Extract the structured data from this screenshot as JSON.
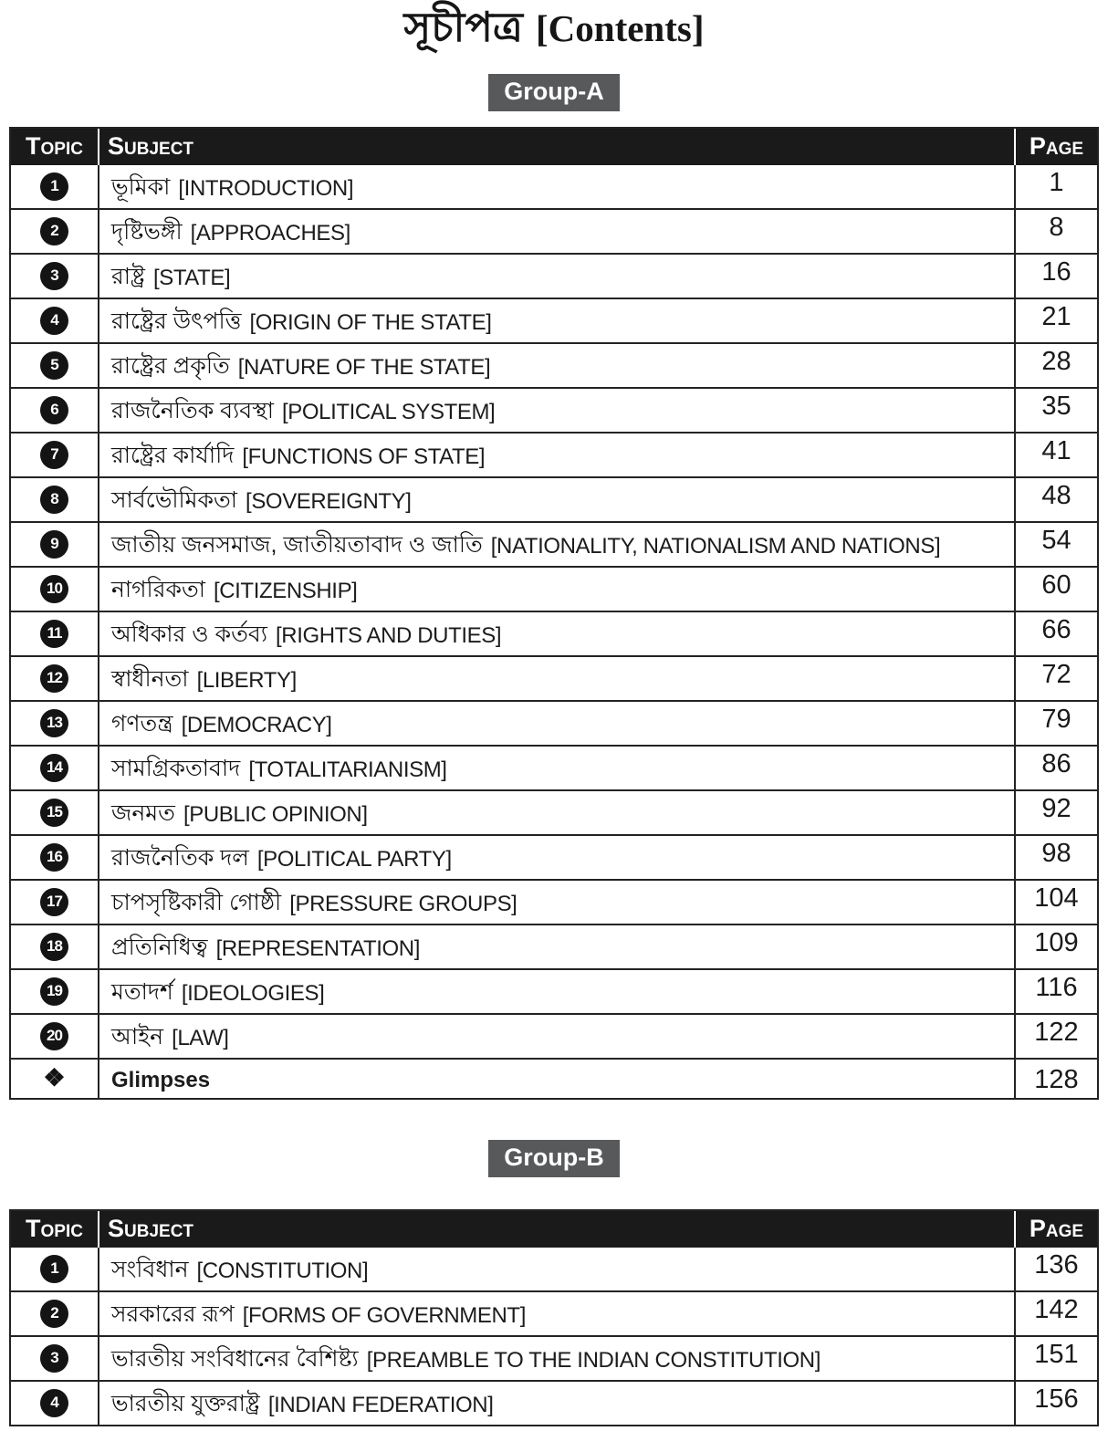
{
  "title": {
    "bn": "সূচীপত্র",
    "en": "[Contents]"
  },
  "columns": {
    "topic": "Topic",
    "subject": "Subject",
    "page": "Page"
  },
  "colors": {
    "header_bg": "#1a1a1a",
    "badge_bg": "#58595b",
    "border": "#232323",
    "text": "#1b1b1b"
  },
  "groups": [
    {
      "label": "Group-A",
      "rows": [
        {
          "topic": "1",
          "bn": "ভূমিকা",
          "en": "[INTRODUCTION]",
          "page": "1"
        },
        {
          "topic": "2",
          "bn": "দৃষ্টিভঙ্গী",
          "en": "[APPROACHES]",
          "page": "8"
        },
        {
          "topic": "3",
          "bn": "রাষ্ট্র",
          "en": "[STATE]",
          "page": "16"
        },
        {
          "topic": "4",
          "bn": "রাষ্ট্রের উৎপত্তি",
          "en": "[ORIGIN OF THE STATE]",
          "page": "21"
        },
        {
          "topic": "5",
          "bn": "রাষ্ট্রের প্রকৃতি",
          "en": "[NATURE OF THE STATE]",
          "page": "28"
        },
        {
          "topic": "6",
          "bn": "রাজনৈতিক ব্যবস্থা",
          "en": "[POLITICAL SYSTEM]",
          "page": "35"
        },
        {
          "topic": "7",
          "bn": "রাষ্ট্রের কার্যাদি",
          "en": "[FUNCTIONS OF STATE]",
          "page": "41"
        },
        {
          "topic": "8",
          "bn": "সার্বভৌমিকতা",
          "en": "[SOVEREIGNTY]",
          "page": "48"
        },
        {
          "topic": "9",
          "bn": "জাতীয় জনসমাজ, জাতীয়তাবাদ ও জাতি",
          "en": "[NATIONALITY, NATIONALISM AND NATIONS]",
          "page": "54"
        },
        {
          "topic": "10",
          "bn": "নাগরিকতা",
          "en": "[CITIZENSHIP]",
          "page": "60"
        },
        {
          "topic": "11",
          "bn": "অধিকার ও কর্তব্য",
          "en": "[RIGHTS AND DUTIES]",
          "page": "66"
        },
        {
          "topic": "12",
          "bn": "স্বাধীনতা",
          "en": "[LIBERTY]",
          "page": "72"
        },
        {
          "topic": "13",
          "bn": "গণতন্ত্র",
          "en": "[DEMOCRACY]",
          "page": "79"
        },
        {
          "topic": "14",
          "bn": "সামগ্রিকতাবাদ",
          "en": "[TOTALITARIANISM]",
          "page": "86"
        },
        {
          "topic": "15",
          "bn": "জনমত",
          "en": "[PUBLIC OPINION]",
          "page": "92"
        },
        {
          "topic": "16",
          "bn": "রাজনৈতিক দল",
          "en": "[POLITICAL PARTY]",
          "page": "98"
        },
        {
          "topic": "17",
          "bn": "চাপসৃষ্টিকারী গোষ্ঠী",
          "en": "[PRESSURE GROUPS]",
          "page": "104"
        },
        {
          "topic": "18",
          "bn": "প্রতিনিধিত্ব",
          "en": "[REPRESENTATION]",
          "page": "109"
        },
        {
          "topic": "19",
          "bn": "মতাদর্শ",
          "en": "[IDEOLOGIES]",
          "page": "116"
        },
        {
          "topic": "20",
          "bn": "আইন",
          "en": "[LAW]",
          "page": "122"
        },
        {
          "topic": "❖",
          "bn": "",
          "en": "Glimpses",
          "page": "128",
          "variant": "glimpses"
        }
      ]
    },
    {
      "label": "Group-B",
      "rows": [
        {
          "topic": "1",
          "bn": "সংবিধান",
          "en": "[CONSTITUTION]",
          "page": "136"
        },
        {
          "topic": "2",
          "bn": "সরকারের রূপ",
          "en": "[FORMS OF GOVERNMENT]",
          "page": "142"
        },
        {
          "topic": "3",
          "bn": "ভারতীয় সংবিধানের বৈশিষ্ট্য",
          "en": "[PREAMBLE TO THE INDIAN CONSTITUTION]",
          "page": "151"
        },
        {
          "topic": "4",
          "bn": "ভারতীয় যুক্তরাষ্ট্র",
          "en": "[INDIAN FEDERATION]",
          "page": "156"
        }
      ]
    }
  ]
}
